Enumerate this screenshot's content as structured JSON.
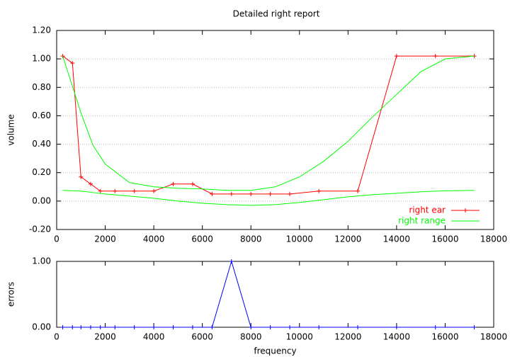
{
  "chart_data": [
    {
      "type": "line",
      "title": "Detailed right report",
      "ylabel": "volume",
      "xlim": [
        0,
        18000
      ],
      "xticks": [
        0,
        2000,
        4000,
        6000,
        8000,
        10000,
        12000,
        14000,
        16000,
        18000
      ],
      "ylim": [
        -0.2,
        1.2
      ],
      "yticks": [
        {
          "value": -0.2,
          "label": "-0.20"
        },
        {
          "value": 0,
          "label": "0.00"
        },
        {
          "value": 0.2,
          "label": "0.20"
        },
        {
          "value": 0.4,
          "label": "0.40"
        },
        {
          "value": 0.6,
          "label": "0.60"
        },
        {
          "value": 0.8,
          "label": "0.80"
        },
        {
          "value": 1.0,
          "label": "1.00"
        },
        {
          "value": 1.2,
          "label": "1.20"
        }
      ],
      "grid": true,
      "legend": "bottom right",
      "series": [
        {
          "name": "right ear",
          "color": "#ff0000",
          "markers": true,
          "x": [
            250,
            650,
            1000,
            1400,
            1800,
            2400,
            3200,
            4000,
            4800,
            5600,
            6400,
            7200,
            8000,
            8800,
            9600,
            10800,
            12400,
            14000,
            15600,
            17200
          ],
          "values": [
            1.02,
            0.97,
            0.17,
            0.12,
            0.07,
            0.07,
            0.07,
            0.07,
            0.12,
            0.12,
            0.05,
            0.05,
            0.05,
            0.05,
            0.05,
            0.07,
            0.07,
            1.02,
            1.02,
            1.02
          ]
        },
        {
          "name": "right range",
          "color": "#00ff00",
          "x": [
            250,
            1000,
            1500,
            2000,
            3000,
            4000,
            5000,
            6000,
            7000,
            8000,
            9000,
            10000,
            11000,
            12000,
            13000,
            14000,
            15000,
            16000,
            17200
          ],
          "upper": [
            1.02,
            0.62,
            0.39,
            0.26,
            0.13,
            0.1,
            0.09,
            0.085,
            0.075,
            0.075,
            0.1,
            0.17,
            0.28,
            0.42,
            0.59,
            0.75,
            0.91,
            1.0,
            1.02
          ],
          "lower": [
            0.075,
            0.07,
            0.06,
            0.05,
            0.035,
            0.02,
            0.0,
            -0.015,
            -0.025,
            -0.03,
            -0.025,
            -0.01,
            0.01,
            0.03,
            0.045,
            0.055,
            0.065,
            0.072,
            0.075
          ]
        }
      ]
    },
    {
      "type": "line",
      "ylabel": "errors",
      "xlabel": "frequency",
      "xlim": [
        0,
        18000
      ],
      "xticks": [
        0,
        2000,
        4000,
        6000,
        8000,
        10000,
        12000,
        14000,
        16000,
        18000
      ],
      "ylim": [
        0,
        1
      ],
      "yticks": [
        {
          "value": 0,
          "label": "0.00"
        },
        {
          "value": 1,
          "label": "1.00"
        }
      ],
      "grid": true,
      "series": [
        {
          "color": "#0000ff",
          "markers": true,
          "x": [
            250,
            650,
            1000,
            1400,
            1800,
            2400,
            3200,
            4000,
            4800,
            5600,
            6400,
            7200,
            8000,
            8800,
            9600,
            10800,
            12400,
            14000,
            15600,
            17200
          ],
          "values": [
            0,
            0,
            0,
            0,
            0,
            0,
            0,
            0,
            0,
            0,
            0,
            1,
            0,
            0,
            0,
            0,
            0,
            0,
            0,
            0
          ]
        }
      ]
    }
  ]
}
